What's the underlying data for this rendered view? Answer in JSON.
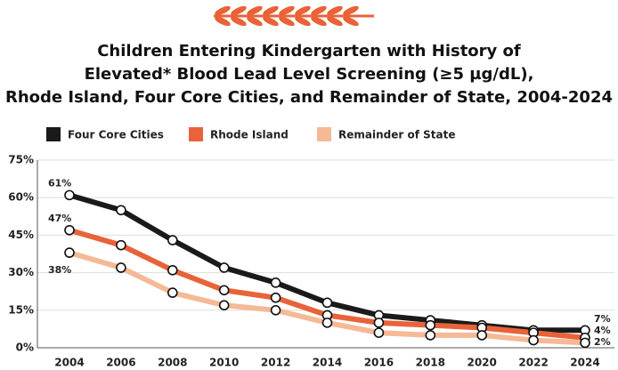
{
  "chart_data": {
    "type": "line",
    "title": [
      "Children Entering Kindergarten with History of",
      "Elevated* Blood Lead Level Screening (≥5 µg/dL),",
      "Rhode Island, Four Core Cities, and Remainder of State, 2004-2024"
    ],
    "categories": [
      "2004",
      "2006",
      "2008",
      "2010",
      "2012",
      "2014",
      "2016",
      "2018",
      "2020",
      "2022",
      "2024"
    ],
    "series": [
      {
        "name": "Four Core Cities",
        "color": "#1a1a1a",
        "values": [
          61,
          55,
          43,
          32,
          26,
          18,
          13,
          11,
          9,
          7,
          7
        ],
        "value_labels": [
          "61%",
          null,
          null,
          null,
          null,
          null,
          null,
          null,
          null,
          null,
          "7%"
        ]
      },
      {
        "name": "Rhode Island",
        "color": "#e8633a",
        "values": [
          47,
          41,
          31,
          23,
          20,
          13,
          10,
          9,
          8,
          6,
          4
        ],
        "value_labels": [
          "47%",
          null,
          null,
          null,
          null,
          null,
          null,
          null,
          null,
          null,
          "4%"
        ]
      },
      {
        "name": "Remainder of State",
        "color": "#f5b996",
        "values": [
          38,
          32,
          22,
          17,
          15,
          10,
          6,
          5,
          5,
          3,
          2
        ],
        "value_labels": [
          "38%",
          null,
          null,
          null,
          null,
          null,
          null,
          null,
          null,
          null,
          "2%"
        ]
      }
    ],
    "ylim": [
      0,
      75
    ],
    "yticks": [
      {
        "value": 0,
        "label": "0%"
      },
      {
        "value": 15,
        "label": "15%"
      },
      {
        "value": 30,
        "label": "30%"
      },
      {
        "value": 45,
        "label": "45%"
      },
      {
        "value": 60,
        "label": "60%"
      },
      {
        "value": 75,
        "label": "75%"
      }
    ],
    "grid": true,
    "legend": "top"
  }
}
